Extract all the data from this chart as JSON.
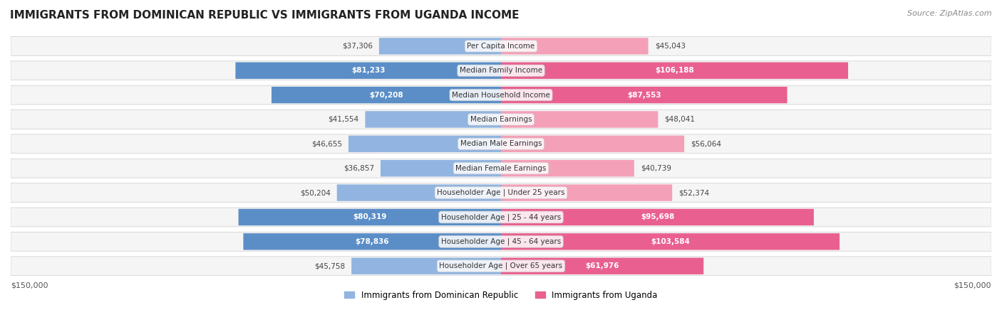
{
  "title": "IMMIGRANTS FROM DOMINICAN REPUBLIC VS IMMIGRANTS FROM UGANDA INCOME",
  "source": "Source: ZipAtlas.com",
  "categories": [
    "Per Capita Income",
    "Median Family Income",
    "Median Household Income",
    "Median Earnings",
    "Median Male Earnings",
    "Median Female Earnings",
    "Householder Age | Under 25 years",
    "Householder Age | 25 - 44 years",
    "Householder Age | 45 - 64 years",
    "Householder Age | Over 65 years"
  ],
  "dominican": [
    37306,
    81233,
    70208,
    41554,
    46655,
    36857,
    50204,
    80319,
    78836,
    45758
  ],
  "uganda": [
    45043,
    106188,
    87553,
    48041,
    56064,
    40739,
    52374,
    95698,
    103584,
    61976
  ],
  "dominican_labels": [
    "$37,306",
    "$81,233",
    "$70,208",
    "$41,554",
    "$46,655",
    "$36,857",
    "$50,204",
    "$80,319",
    "$78,836",
    "$45,758"
  ],
  "uganda_labels": [
    "$45,043",
    "$106,188",
    "$87,553",
    "$48,041",
    "$56,064",
    "$40,739",
    "$52,374",
    "$95,698",
    "$103,584",
    "$61,976"
  ],
  "dominican_color": "#92b4e0",
  "dominican_color_dark": "#5b8ec7",
  "uganda_color": "#f4a0b8",
  "uganda_color_dark": "#e96090",
  "max_val": 150000,
  "legend_dominican": "Immigrants from Dominican Republic",
  "legend_uganda": "Immigrants from Uganda",
  "background_color": "#ffffff",
  "row_bg_color": "#f5f5f5",
  "xlabel_left": "$150,000",
  "xlabel_right": "$150,000"
}
